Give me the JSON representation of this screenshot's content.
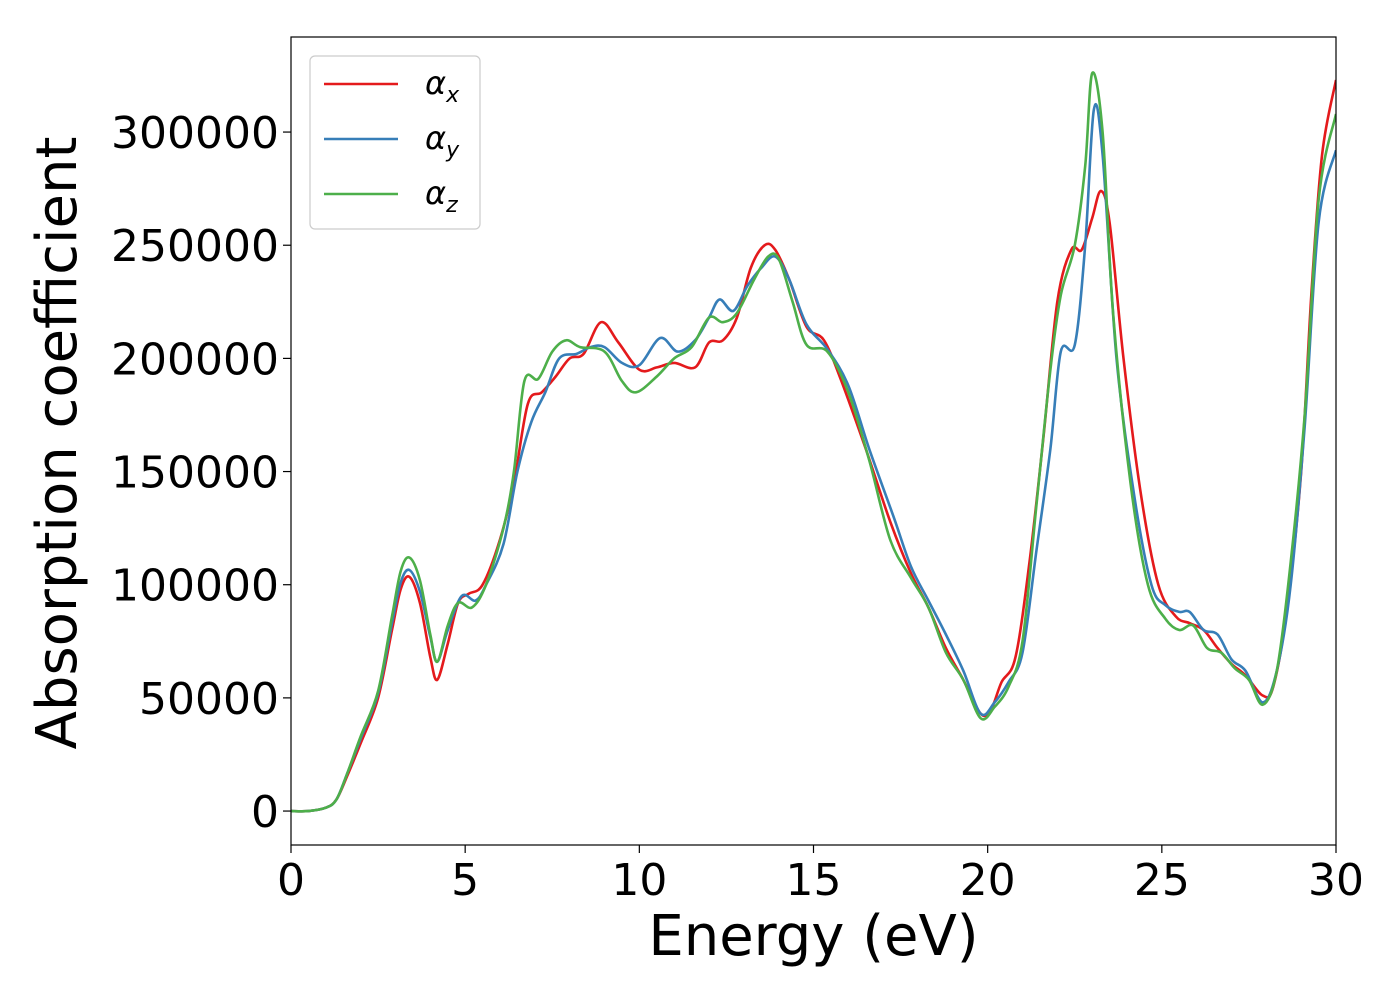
{
  "chart_data": {
    "type": "line",
    "title": "",
    "xlabel": "Energy (eV)",
    "ylabel": "Absorption coefficient",
    "xlim": [
      0,
      30
    ],
    "ylim": [
      -15000,
      342000
    ],
    "x_ticks": [
      "0",
      "5",
      "10",
      "15",
      "20",
      "25",
      "30"
    ],
    "y_ticks": [
      "0",
      "50000",
      "100000",
      "150000",
      "200000",
      "250000",
      "300000"
    ],
    "grid": false,
    "legend_position": "top-left",
    "series": [
      {
        "name": "α_x",
        "legend_base": "α",
        "legend_sub": "x",
        "color": "#e41a1c",
        "points": [
          [
            0,
            0
          ],
          [
            0.5,
            0
          ],
          [
            1.0,
            1500
          ],
          [
            1.3,
            5000
          ],
          [
            1.6,
            15000
          ],
          [
            2.0,
            30000
          ],
          [
            2.5,
            50000
          ],
          [
            2.9,
            80000
          ],
          [
            3.15,
            98000
          ],
          [
            3.4,
            103500
          ],
          [
            3.7,
            92000
          ],
          [
            4.0,
            68000
          ],
          [
            4.2,
            58000
          ],
          [
            4.5,
            74000
          ],
          [
            4.8,
            92000
          ],
          [
            5.1,
            96000
          ],
          [
            5.5,
            100000
          ],
          [
            6.0,
            120000
          ],
          [
            6.4,
            145000
          ],
          [
            6.8,
            180000
          ],
          [
            7.2,
            185000
          ],
          [
            7.6,
            192000
          ],
          [
            8.0,
            200000
          ],
          [
            8.4,
            202000
          ],
          [
            8.9,
            216000
          ],
          [
            9.4,
            207000
          ],
          [
            10.0,
            195000
          ],
          [
            10.5,
            196000
          ],
          [
            11.0,
            198000
          ],
          [
            11.6,
            196000
          ],
          [
            12.0,
            207000
          ],
          [
            12.4,
            208000
          ],
          [
            12.8,
            218000
          ],
          [
            13.2,
            240000
          ],
          [
            13.6,
            250000
          ],
          [
            13.9,
            248000
          ],
          [
            14.3,
            235000
          ],
          [
            14.8,
            214000
          ],
          [
            15.3,
            208000
          ],
          [
            15.8,
            190000
          ],
          [
            16.5,
            160000
          ],
          [
            17.2,
            128000
          ],
          [
            17.8,
            105000
          ],
          [
            18.3,
            90000
          ],
          [
            18.8,
            72000
          ],
          [
            19.3,
            58000
          ],
          [
            19.8,
            43000
          ],
          [
            20.1,
            45000
          ],
          [
            20.4,
            57000
          ],
          [
            20.8,
            68000
          ],
          [
            21.2,
            110000
          ],
          [
            21.6,
            165000
          ],
          [
            22.0,
            225000
          ],
          [
            22.4,
            248000
          ],
          [
            22.7,
            248000
          ],
          [
            23.0,
            262000
          ],
          [
            23.25,
            274000
          ],
          [
            23.5,
            260000
          ],
          [
            23.9,
            200000
          ],
          [
            24.4,
            140000
          ],
          [
            24.9,
            100000
          ],
          [
            25.4,
            86000
          ],
          [
            25.8,
            83000
          ],
          [
            26.2,
            80000
          ],
          [
            26.6,
            72000
          ],
          [
            27.0,
            65000
          ],
          [
            27.4,
            60000
          ],
          [
            27.9,
            51000
          ],
          [
            28.2,
            55000
          ],
          [
            28.6,
            90000
          ],
          [
            29.0,
            150000
          ],
          [
            29.3,
            230000
          ],
          [
            29.6,
            290000
          ],
          [
            30.0,
            323000
          ]
        ]
      },
      {
        "name": "α_y",
        "legend_base": "α",
        "legend_sub": "y",
        "color": "#377eb8",
        "points": [
          [
            0,
            0
          ],
          [
            0.5,
            0
          ],
          [
            1.0,
            1500
          ],
          [
            1.3,
            5000
          ],
          [
            1.6,
            16000
          ],
          [
            2.0,
            32000
          ],
          [
            2.5,
            52000
          ],
          [
            2.9,
            83000
          ],
          [
            3.15,
            101000
          ],
          [
            3.4,
            106500
          ],
          [
            3.7,
            97000
          ],
          [
            4.0,
            77000
          ],
          [
            4.2,
            66000
          ],
          [
            4.5,
            80000
          ],
          [
            4.9,
            95000
          ],
          [
            5.3,
            93000
          ],
          [
            5.6,
            100000
          ],
          [
            6.1,
            118000
          ],
          [
            6.5,
            150000
          ],
          [
            6.9,
            172000
          ],
          [
            7.3,
            185000
          ],
          [
            7.7,
            200000
          ],
          [
            8.2,
            202000
          ],
          [
            8.6,
            205000
          ],
          [
            9.0,
            205000
          ],
          [
            9.5,
            198000
          ],
          [
            10.0,
            197000
          ],
          [
            10.6,
            209000
          ],
          [
            11.1,
            203000
          ],
          [
            11.6,
            208000
          ],
          [
            12.0,
            218000
          ],
          [
            12.3,
            226000
          ],
          [
            12.7,
            221000
          ],
          [
            13.1,
            232000
          ],
          [
            13.5,
            240000
          ],
          [
            13.9,
            245000
          ],
          [
            14.3,
            235000
          ],
          [
            14.8,
            215000
          ],
          [
            15.4,
            204000
          ],
          [
            16.0,
            188000
          ],
          [
            16.6,
            160000
          ],
          [
            17.3,
            130000
          ],
          [
            17.8,
            108000
          ],
          [
            18.3,
            93000
          ],
          [
            18.8,
            78000
          ],
          [
            19.3,
            62000
          ],
          [
            19.8,
            43000
          ],
          [
            20.2,
            48000
          ],
          [
            20.6,
            57000
          ],
          [
            21.0,
            70000
          ],
          [
            21.4,
            115000
          ],
          [
            21.8,
            160000
          ],
          [
            22.1,
            203000
          ],
          [
            22.5,
            206000
          ],
          [
            22.8,
            250000
          ],
          [
            23.05,
            310000
          ],
          [
            23.3,
            290000
          ],
          [
            23.7,
            200000
          ],
          [
            24.2,
            140000
          ],
          [
            24.7,
            100000
          ],
          [
            25.1,
            91000
          ],
          [
            25.5,
            88000
          ],
          [
            25.8,
            88000
          ],
          [
            26.2,
            80000
          ],
          [
            26.6,
            78000
          ],
          [
            27.0,
            67000
          ],
          [
            27.4,
            62000
          ],
          [
            27.9,
            48000
          ],
          [
            28.3,
            62000
          ],
          [
            28.7,
            100000
          ],
          [
            29.1,
            170000
          ],
          [
            29.5,
            260000
          ],
          [
            30.0,
            292000
          ]
        ]
      },
      {
        "name": "α_z",
        "legend_base": "α",
        "legend_sub": "z",
        "color": "#4daf4a",
        "points": [
          [
            0,
            0
          ],
          [
            0.5,
            0
          ],
          [
            1.0,
            1500
          ],
          [
            1.3,
            5000
          ],
          [
            1.6,
            16000
          ],
          [
            2.0,
            33000
          ],
          [
            2.5,
            53000
          ],
          [
            2.9,
            86000
          ],
          [
            3.15,
            106000
          ],
          [
            3.4,
            112000
          ],
          [
            3.7,
            102000
          ],
          [
            4.0,
            78000
          ],
          [
            4.2,
            66000
          ],
          [
            4.5,
            82000
          ],
          [
            4.8,
            92000
          ],
          [
            5.2,
            90000
          ],
          [
            5.6,
            100000
          ],
          [
            6.1,
            125000
          ],
          [
            6.4,
            150000
          ],
          [
            6.7,
            190000
          ],
          [
            7.1,
            191000
          ],
          [
            7.5,
            203000
          ],
          [
            7.9,
            208000
          ],
          [
            8.3,
            205000
          ],
          [
            9.0,
            203000
          ],
          [
            9.5,
            190000
          ],
          [
            9.9,
            185000
          ],
          [
            10.5,
            192000
          ],
          [
            11.0,
            200000
          ],
          [
            11.5,
            205000
          ],
          [
            12.0,
            218000
          ],
          [
            12.4,
            216000
          ],
          [
            12.8,
            220000
          ],
          [
            13.3,
            235000
          ],
          [
            13.7,
            245000
          ],
          [
            14.0,
            244000
          ],
          [
            14.4,
            225000
          ],
          [
            14.8,
            206000
          ],
          [
            15.4,
            203000
          ],
          [
            16.0,
            185000
          ],
          [
            16.6,
            155000
          ],
          [
            17.2,
            120000
          ],
          [
            17.8,
            103000
          ],
          [
            18.3,
            90000
          ],
          [
            18.8,
            70000
          ],
          [
            19.3,
            58000
          ],
          [
            19.8,
            41000
          ],
          [
            20.2,
            46000
          ],
          [
            20.6,
            55000
          ],
          [
            21.0,
            75000
          ],
          [
            21.4,
            135000
          ],
          [
            21.8,
            195000
          ],
          [
            22.1,
            228000
          ],
          [
            22.5,
            250000
          ],
          [
            22.8,
            285000
          ],
          [
            23.0,
            326000
          ],
          [
            23.3,
            300000
          ],
          [
            23.6,
            220000
          ],
          [
            24.1,
            145000
          ],
          [
            24.6,
            100000
          ],
          [
            25.1,
            85000
          ],
          [
            25.5,
            80000
          ],
          [
            25.9,
            82000
          ],
          [
            26.3,
            72000
          ],
          [
            26.7,
            70000
          ],
          [
            27.1,
            63000
          ],
          [
            27.5,
            58000
          ],
          [
            27.9,
            47000
          ],
          [
            28.3,
            62000
          ],
          [
            28.7,
            110000
          ],
          [
            29.1,
            175000
          ],
          [
            29.5,
            270000
          ],
          [
            30.0,
            308000
          ]
        ]
      }
    ]
  }
}
